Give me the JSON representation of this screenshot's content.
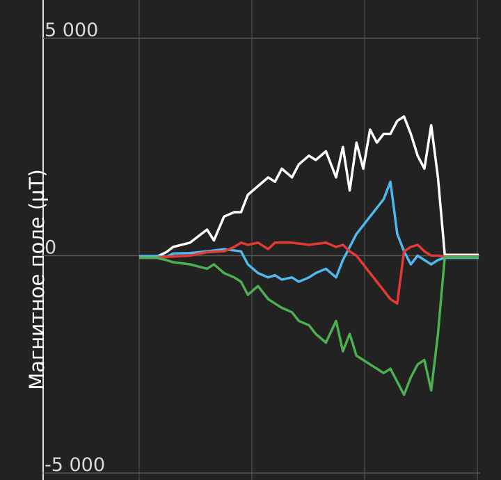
{
  "chart_data": {
    "type": "line",
    "title": "",
    "xlabel": "",
    "ylabel": "Магнитное поле (µT)",
    "ylim": [
      -5000,
      5000
    ],
    "yticks": [
      {
        "value": 5000,
        "label": "5 000"
      },
      {
        "value": 0,
        "label": "0"
      },
      {
        "value": -5000,
        "label": "-5 000"
      }
    ],
    "xlim": [
      0,
      100
    ],
    "grid": true,
    "series": [
      {
        "color": "#ffffff",
        "x": [
          0,
          5,
          8,
          10,
          15,
          20,
          22,
          25,
          28,
          30,
          32,
          35,
          38,
          40,
          42,
          45,
          47,
          50,
          52,
          55,
          58,
          60,
          62,
          64,
          66,
          68,
          70,
          72,
          74,
          76,
          78,
          80,
          82,
          84,
          86,
          88,
          90,
          92,
          94,
          96,
          98,
          100
        ],
        "y": [
          -30,
          -30,
          80,
          200,
          300,
          600,
          350,
          900,
          1000,
          1000,
          1400,
          1600,
          1800,
          1700,
          2000,
          1800,
          2100,
          2300,
          2200,
          2400,
          1800,
          2500,
          1500,
          2600,
          2000,
          2900,
          2600,
          2800,
          2800,
          3100,
          3200,
          2800,
          2300,
          2000,
          3000,
          1800,
          20,
          20,
          20,
          20,
          20,
          20
        ]
      },
      {
        "color": "#4fb8ec",
        "x": [
          0,
          5,
          8,
          10,
          15,
          20,
          25,
          30,
          32,
          35,
          38,
          40,
          42,
          45,
          47,
          50,
          52,
          55,
          58,
          60,
          62,
          64,
          66,
          68,
          70,
          72,
          74,
          76,
          78,
          80,
          82,
          84,
          86,
          88,
          90,
          92,
          94,
          96,
          98,
          100
        ],
        "y": [
          -10,
          -10,
          -30,
          50,
          60,
          100,
          150,
          100,
          -200,
          -400,
          -500,
          -450,
          -550,
          -500,
          -600,
          -500,
          -400,
          -300,
          -500,
          -100,
          200,
          500,
          700,
          900,
          1100,
          1300,
          1700,
          500,
          100,
          -200,
          0,
          -100,
          -200,
          -100,
          -50,
          -50,
          -50,
          -50,
          -50,
          -50
        ]
      },
      {
        "color": "#e53935",
        "x": [
          0,
          5,
          8,
          10,
          15,
          20,
          25,
          28,
          30,
          32,
          35,
          38,
          40,
          45,
          50,
          55,
          58,
          60,
          62,
          64,
          66,
          68,
          70,
          72,
          74,
          76,
          78,
          80,
          82,
          84,
          86,
          88,
          90,
          92,
          94,
          96,
          98,
          100
        ],
        "y": [
          -50,
          -50,
          -30,
          -20,
          0,
          80,
          100,
          200,
          300,
          250,
          300,
          150,
          300,
          300,
          250,
          300,
          200,
          250,
          100,
          0,
          -200,
          -400,
          -600,
          -800,
          -1000,
          -1100,
          100,
          200,
          250,
          100,
          0,
          0,
          -20,
          -20,
          -20,
          -20,
          -20,
          -20
        ]
      },
      {
        "color": "#4caf50",
        "x": [
          0,
          5,
          8,
          10,
          15,
          20,
          22,
          25,
          28,
          30,
          32,
          35,
          38,
          40,
          42,
          45,
          47,
          50,
          52,
          55,
          58,
          60,
          62,
          64,
          66,
          68,
          70,
          72,
          74,
          76,
          78,
          80,
          82,
          84,
          86,
          88,
          90,
          92,
          94,
          96,
          98,
          100
        ],
        "y": [
          -50,
          -50,
          -100,
          -150,
          -200,
          -300,
          -200,
          -400,
          -500,
          -600,
          -900,
          -700,
          -1000,
          -1100,
          -1200,
          -1300,
          -1500,
          -1600,
          -1800,
          -2000,
          -1500,
          -2200,
          -1800,
          -2300,
          -2400,
          -2500,
          -2600,
          -2700,
          -2600,
          -2900,
          -3200,
          -2800,
          -2500,
          -2400,
          -3100,
          -1800,
          -30,
          -30,
          -30,
          -30,
          -30,
          -30
        ]
      }
    ]
  }
}
